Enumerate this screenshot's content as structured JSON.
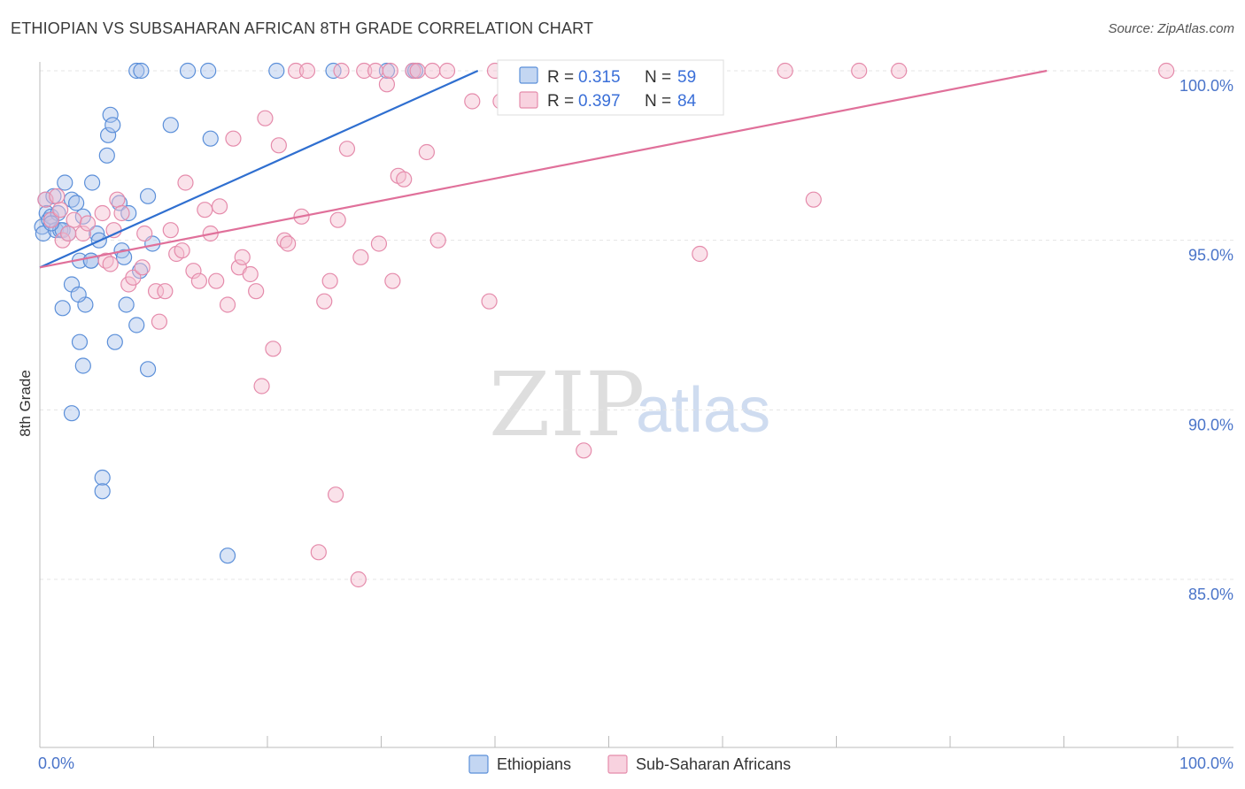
{
  "title": "ETHIOPIAN VS SUBSAHARAN AFRICAN 8TH GRADE CORRELATION CHART",
  "source": "Source: ZipAtlas.com",
  "colors": {
    "blue": "#5b8fd9",
    "blue_fill": "#aac4ec",
    "blue_line": "#2f6fd0",
    "pink": "#e58bab",
    "pink_fill": "#f5bfd1",
    "pink_line": "#e0709a",
    "axis_label": "#4a74c9"
  },
  "legend": {
    "rows": [
      {
        "r_label": "R =",
        "r_value": "0.315",
        "n_label": "N =",
        "n_value": "59"
      },
      {
        "r_label": "R =",
        "r_value": "0.397",
        "n_label": "N =",
        "n_value": "84"
      }
    ]
  },
  "watermark": {
    "zip": "ZIP",
    "atlas": "atlas"
  },
  "chart_data": {
    "type": "scatter",
    "title": "ETHIOPIAN VS SUBSAHARAN AFRICAN 8TH GRADE CORRELATION CHART",
    "xlabel": "",
    "ylabel": "8th Grade",
    "xlim": [
      0,
      100
    ],
    "ylim": [
      80.5,
      100.2
    ],
    "x_tick_labels": [
      "0.0%",
      "100.0%"
    ],
    "y_ticks": [
      85,
      90,
      95,
      100
    ],
    "y_tick_labels": [
      "85.0%",
      "90.0%",
      "95.0%",
      "100.0%"
    ],
    "series": [
      {
        "name": "Ethiopians",
        "r": 0.315,
        "n": 59,
        "trend": {
          "x1": 0,
          "y1": 94.2,
          "x2": 38.5,
          "y2": 100.0
        },
        "points": [
          [
            0.2,
            95.4
          ],
          [
            0.3,
            95.2
          ],
          [
            0.5,
            96.2
          ],
          [
            0.6,
            95.8
          ],
          [
            0.8,
            95.6
          ],
          [
            1.0,
            95.7
          ],
          [
            1.2,
            96.3
          ],
          [
            1.4,
            95.3
          ],
          [
            1.6,
            95.8
          ],
          [
            1.8,
            95.3
          ],
          [
            2.0,
            95.3
          ],
          [
            2.2,
            96.7
          ],
          [
            2.5,
            95.2
          ],
          [
            2.8,
            96.2
          ],
          [
            3.2,
            96.1
          ],
          [
            3.5,
            94.4
          ],
          [
            3.8,
            95.7
          ],
          [
            4.0,
            93.1
          ],
          [
            4.5,
            94.4
          ],
          [
            4.6,
            96.7
          ],
          [
            5.0,
            95.2
          ],
          [
            5.2,
            95.0
          ],
          [
            5.5,
            88.0
          ],
          [
            5.5,
            87.6
          ],
          [
            5.9,
            97.5
          ],
          [
            6.0,
            98.1
          ],
          [
            6.2,
            98.7
          ],
          [
            6.4,
            98.4
          ],
          [
            6.6,
            92.0
          ],
          [
            7.0,
            96.1
          ],
          [
            7.2,
            94.7
          ],
          [
            7.4,
            94.5
          ],
          [
            7.6,
            93.1
          ],
          [
            7.8,
            95.8
          ],
          [
            8.5,
            92.5
          ],
          [
            8.8,
            94.1
          ],
          [
            8.5,
            100.0
          ],
          [
            8.9,
            100.0
          ],
          [
            9.5,
            96.3
          ],
          [
            9.5,
            91.2
          ],
          [
            9.9,
            94.9
          ],
          [
            11.5,
            98.4
          ],
          [
            13.0,
            100.0
          ],
          [
            14.8,
            100.0
          ],
          [
            15.0,
            98.0
          ],
          [
            16.5,
            85.7
          ],
          [
            20.8,
            100.0
          ],
          [
            25.8,
            100.0
          ],
          [
            30.5,
            100.0
          ],
          [
            32.8,
            100.0
          ],
          [
            33.0,
            100.0
          ],
          [
            1.0,
            95.5
          ],
          [
            2.0,
            93.0
          ],
          [
            2.8,
            93.7
          ],
          [
            3.4,
            93.4
          ],
          [
            3.5,
            92.0
          ],
          [
            3.8,
            91.3
          ],
          [
            2.8,
            89.9
          ],
          [
            4.5,
            94.4
          ]
        ]
      },
      {
        "name": "Sub-Saharan Africans",
        "r": 0.397,
        "n": 84,
        "trend": {
          "x1": 0,
          "y1": 94.2,
          "x2": 88.5,
          "y2": 100.0
        },
        "points": [
          [
            0.5,
            96.2
          ],
          [
            1.0,
            95.6
          ],
          [
            1.5,
            96.3
          ],
          [
            1.8,
            95.9
          ],
          [
            2.0,
            95.0
          ],
          [
            2.5,
            95.2
          ],
          [
            3.0,
            95.6
          ],
          [
            3.8,
            95.2
          ],
          [
            4.2,
            95.5
          ],
          [
            5.5,
            95.8
          ],
          [
            5.8,
            94.4
          ],
          [
            6.2,
            94.3
          ],
          [
            6.5,
            95.3
          ],
          [
            6.8,
            96.2
          ],
          [
            7.2,
            95.8
          ],
          [
            7.8,
            93.7
          ],
          [
            8.2,
            93.9
          ],
          [
            9.0,
            94.2
          ],
          [
            9.2,
            95.2
          ],
          [
            10.2,
            93.5
          ],
          [
            10.5,
            92.6
          ],
          [
            11.0,
            93.5
          ],
          [
            11.5,
            95.3
          ],
          [
            12.0,
            94.6
          ],
          [
            12.5,
            94.7
          ],
          [
            12.8,
            96.7
          ],
          [
            13.5,
            94.1
          ],
          [
            14.0,
            93.8
          ],
          [
            14.5,
            95.9
          ],
          [
            15.0,
            95.2
          ],
          [
            15.5,
            93.8
          ],
          [
            15.8,
            96.0
          ],
          [
            16.5,
            93.1
          ],
          [
            17.0,
            98.0
          ],
          [
            17.5,
            94.2
          ],
          [
            17.8,
            94.5
          ],
          [
            18.5,
            94.0
          ],
          [
            19.0,
            93.5
          ],
          [
            19.5,
            90.7
          ],
          [
            19.8,
            98.6
          ],
          [
            20.5,
            91.8
          ],
          [
            21.0,
            97.8
          ],
          [
            21.5,
            95.0
          ],
          [
            21.8,
            94.9
          ],
          [
            22.5,
            100.0
          ],
          [
            23.0,
            95.7
          ],
          [
            23.5,
            100.0
          ],
          [
            24.5,
            85.8
          ],
          [
            25.0,
            93.2
          ],
          [
            25.5,
            93.8
          ],
          [
            26.0,
            87.5
          ],
          [
            26.2,
            95.6
          ],
          [
            26.5,
            100.0
          ],
          [
            27.0,
            97.7
          ],
          [
            28.0,
            85.0
          ],
          [
            28.2,
            94.5
          ],
          [
            28.5,
            100.0
          ],
          [
            29.5,
            100.0
          ],
          [
            29.8,
            94.9
          ],
          [
            30.5,
            99.6
          ],
          [
            30.8,
            100.0
          ],
          [
            31.0,
            93.8
          ],
          [
            31.5,
            96.9
          ],
          [
            32.0,
            96.8
          ],
          [
            32.8,
            100.0
          ],
          [
            33.2,
            100.0
          ],
          [
            34.0,
            97.6
          ],
          [
            34.5,
            100.0
          ],
          [
            35.0,
            95.0
          ],
          [
            35.8,
            100.0
          ],
          [
            39.5,
            93.2
          ],
          [
            40.0,
            100.0
          ],
          [
            42.5,
            100.0
          ],
          [
            45.0,
            100.0
          ],
          [
            47.8,
            88.8
          ],
          [
            50.0,
            100.0
          ],
          [
            58.0,
            94.6
          ],
          [
            65.5,
            100.0
          ],
          [
            68.0,
            96.2
          ],
          [
            72.0,
            100.0
          ],
          [
            75.5,
            100.0
          ],
          [
            99.0,
            100.0
          ],
          [
            40.5,
            99.1
          ],
          [
            38.0,
            99.1
          ]
        ]
      }
    ]
  }
}
